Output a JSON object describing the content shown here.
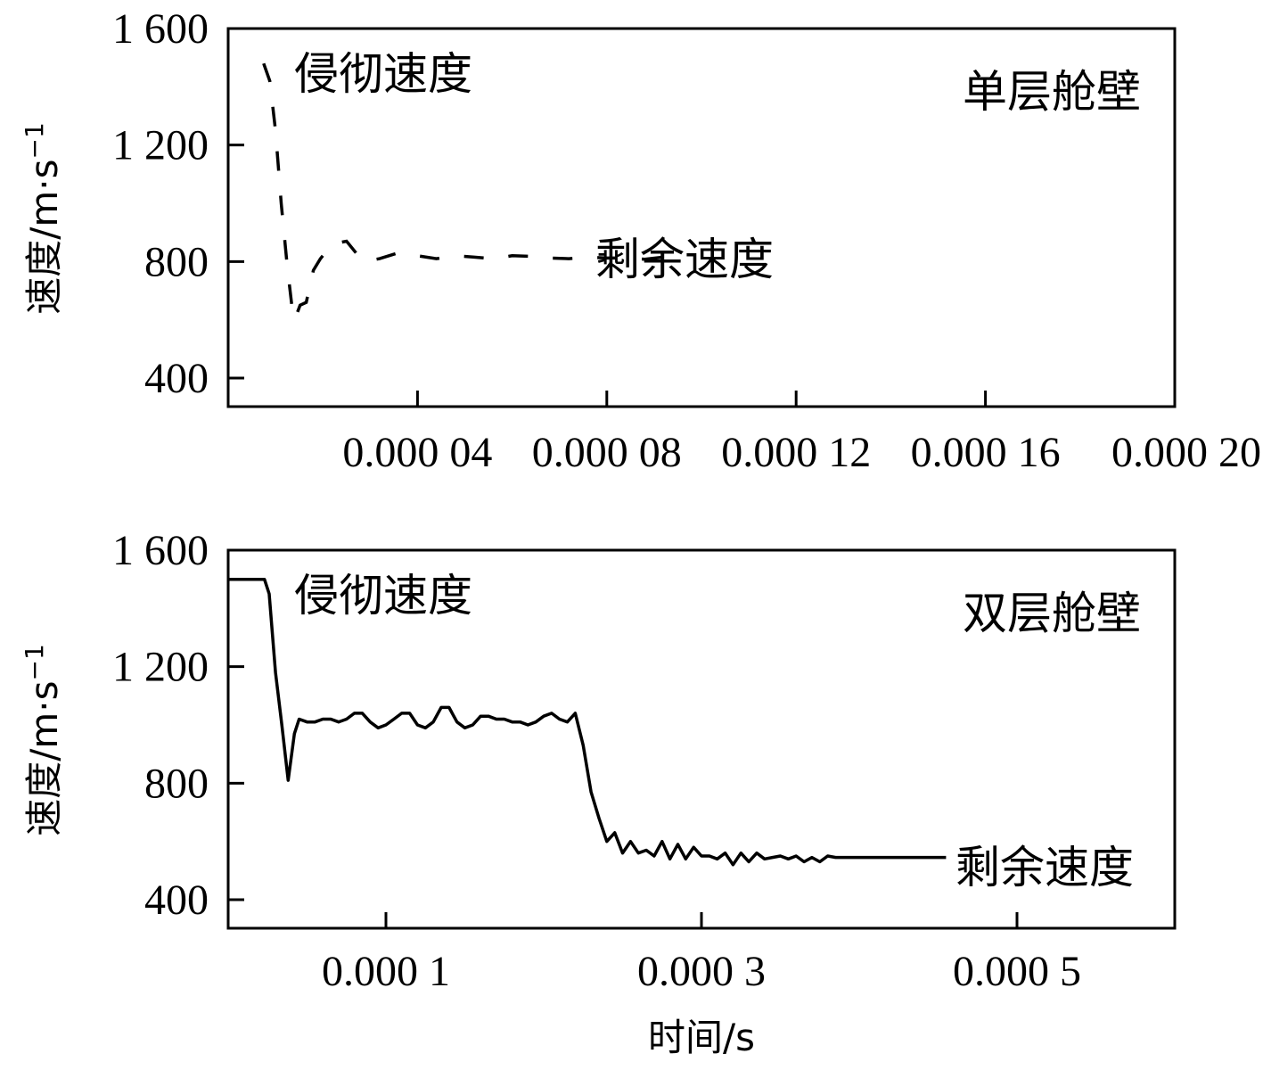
{
  "chart_data": [
    {
      "type": "line",
      "title": "单层舱壁",
      "ylabel": "速度/m·s",
      "ylabel_sup": "−1",
      "xlabel": "",
      "xlim": [
        0.0,
        0.0002
      ],
      "ylim": [
        300,
        1600
      ],
      "x_ticks": [
        4e-05,
        8e-05,
        0.00012,
        0.00016,
        0.0002
      ],
      "x_tick_labels": [
        "0.000 04",
        "0.000 08",
        "0.000 12",
        "0.000 16",
        "0.000 20"
      ],
      "y_ticks": [
        400,
        800,
        1200,
        1600
      ],
      "y_tick_labels": [
        "400",
        "800",
        "1 200",
        "1 600"
      ],
      "line_style": "dashed",
      "annotations": {
        "initial": "侵彻速度",
        "residual": "剩余速度"
      },
      "series": [
        {
          "x": [
            7.5e-06,
            8.8e-06,
            1e-05,
            1.12e-05,
            1.25e-05,
            1.38e-05,
            1.45e-05,
            1.52e-05,
            1.65e-05,
            1.8e-05,
            1.95e-05,
            2.2e-05,
            2.5e-05,
            2.85e-05,
            3.2e-05,
            3.6e-05,
            4e-05,
            4.4e-05,
            4.8e-05,
            5.2e-05,
            5.6e-05,
            6e-05,
            6.4e-05,
            6.8e-05,
            7.2e-05,
            7.6e-05,
            8e-05,
            8.4e-05,
            8.8e-05,
            9.2e-05,
            9.6e-05
          ],
          "y": [
            1480,
            1420,
            1250,
            1000,
            780,
            600,
            620,
            650,
            660,
            770,
            810,
            860,
            870,
            800,
            810,
            830,
            820,
            810,
            820,
            815,
            810,
            820,
            818,
            812,
            810,
            815,
            812,
            812,
            808,
            815,
            820
          ]
        }
      ]
    },
    {
      "type": "line",
      "title": "双层舱壁",
      "ylabel": "速度/m·s",
      "ylabel_sup": "−1",
      "xlabel": "时间/s",
      "xlim": [
        0.0,
        0.0006
      ],
      "ylim": [
        300,
        1600
      ],
      "x_ticks": [
        0.0001,
        0.0003,
        0.0005
      ],
      "x_tick_labels": [
        "0.000 1",
        "0.000 3",
        "0.000 5"
      ],
      "y_ticks": [
        400,
        800,
        1200,
        1600
      ],
      "y_tick_labels": [
        "400",
        "800",
        "1 200",
        "1 600"
      ],
      "line_style": "solid",
      "annotations": {
        "initial": "侵彻速度",
        "residual": "剩余速度"
      },
      "series": [
        {
          "x": [
            0.0,
            2.3e-05,
            2.6e-05,
            3e-05,
            3.4e-05,
            3.8e-05,
            4.2e-05,
            4.5e-05,
            5e-05,
            5.5e-05,
            6e-05,
            6.5e-05,
            7e-05,
            7.5e-05,
            8e-05,
            8.5e-05,
            9e-05,
            9.5e-05,
            0.0001,
            0.000105,
            0.00011,
            0.000115,
            0.00012,
            0.000125,
            0.00013,
            0.000135,
            0.00014,
            0.000145,
            0.00015,
            0.000155,
            0.00016,
            0.000165,
            0.00017,
            0.000175,
            0.00018,
            0.000185,
            0.00019,
            0.000195,
            0.0002,
            0.000205,
            0.00021,
            0.000215,
            0.00022,
            0.000225,
            0.00023,
            0.000235,
            0.00024,
            0.000245,
            0.00025,
            0.000255,
            0.00026,
            0.000265,
            0.00027,
            0.000275,
            0.00028,
            0.000285,
            0.00029,
            0.000295,
            0.0003,
            0.000305,
            0.00031,
            0.000315,
            0.00032,
            0.000325,
            0.00033,
            0.000335,
            0.00034,
            0.000345,
            0.00035,
            0.000355,
            0.00036,
            0.000365,
            0.00037,
            0.000375,
            0.00038,
            0.000385,
            0.00039,
            0.000395,
            0.0004,
            0.000405,
            0.00041,
            0.000415,
            0.00042,
            0.000425,
            0.00043,
            0.000435,
            0.00044,
            0.000445,
            0.00045,
            0.000455
          ],
          "y": [
            1500,
            1500,
            1450,
            1180,
            1000,
            810,
            970,
            1020,
            1010,
            1010,
            1020,
            1020,
            1010,
            1020,
            1040,
            1040,
            1010,
            990,
            1000,
            1020,
            1040,
            1040,
            1000,
            990,
            1010,
            1060,
            1060,
            1010,
            990,
            1000,
            1030,
            1030,
            1020,
            1020,
            1010,
            1010,
            1000,
            1010,
            1030,
            1040,
            1020,
            1010,
            1040,
            930,
            770,
            680,
            600,
            630,
            560,
            600,
            560,
            570,
            550,
            600,
            540,
            590,
            540,
            580,
            550,
            550,
            540,
            560,
            520,
            560,
            530,
            560,
            540,
            545,
            550,
            540,
            550,
            530,
            545,
            530,
            550,
            545,
            545,
            545,
            545,
            545,
            545,
            545,
            545,
            545,
            545,
            545,
            545,
            545,
            545,
            545
          ]
        }
      ]
    }
  ]
}
